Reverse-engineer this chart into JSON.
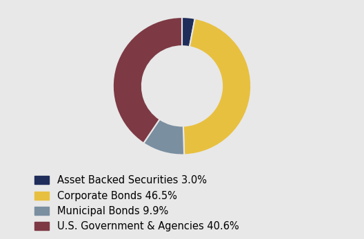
{
  "labels": [
    "Asset Backed Securities 3.0%",
    "Corporate Bonds 46.5%",
    "Municipal Bonds 9.9%",
    "U.S. Government & Agencies 40.6%"
  ],
  "values": [
    3.0,
    46.5,
    9.9,
    40.6
  ],
  "colors": [
    "#1f2d5a",
    "#e8c040",
    "#7a8fa0",
    "#7d3a44"
  ],
  "background_color": "#e8e8e8",
  "legend_fontsize": 10.5,
  "donut_width": 0.42,
  "start_angle": 90
}
